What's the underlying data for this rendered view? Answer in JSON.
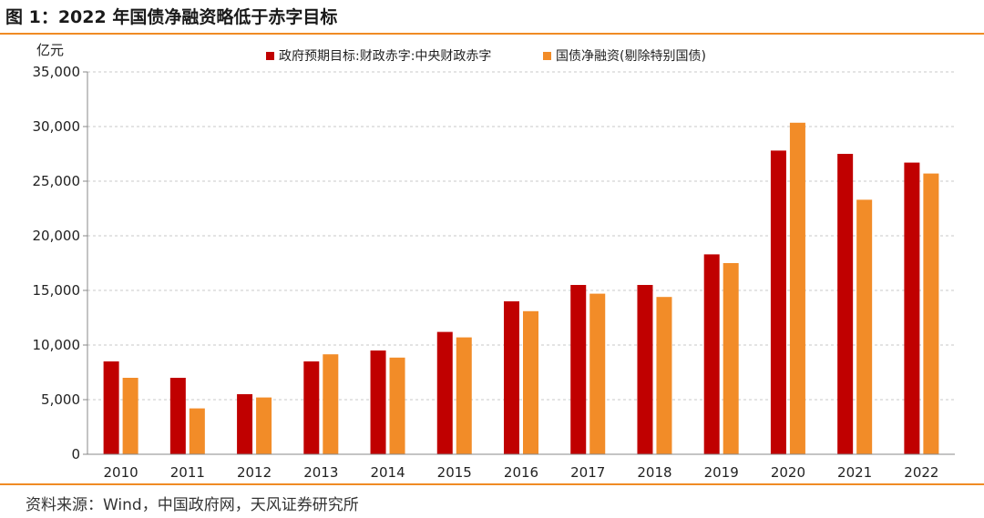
{
  "figure": {
    "title": "图 1：2022 年国债净融资略低于赤字目标",
    "source": "资料来源：Wind，中国政府网，天风证券研究所"
  },
  "colors": {
    "accent": "#f08b24",
    "series1": "#c00000",
    "series2": "#f28c28"
  },
  "chart_data": {
    "type": "bar",
    "title": "",
    "xlabel": "",
    "ylabel": "亿元",
    "ylim": [
      0,
      35000
    ],
    "yticks": [
      0,
      5000,
      10000,
      15000,
      20000,
      25000,
      30000,
      35000
    ],
    "ytick_labels": [
      "0",
      "5,000",
      "10,000",
      "15,000",
      "20,000",
      "25,000",
      "30,000",
      "35,000"
    ],
    "grid": true,
    "legend_position": "top",
    "categories": [
      "2010",
      "2011",
      "2012",
      "2013",
      "2014",
      "2015",
      "2016",
      "2017",
      "2018",
      "2019",
      "2020",
      "2021",
      "2022"
    ],
    "series": [
      {
        "name": "政府预期目标:财政赤字:中央财政赤字",
        "values": [
          8500,
          7000,
          5500,
          8500,
          9500,
          11200,
          14000,
          15500,
          15500,
          18300,
          27800,
          27500,
          26700
        ]
      },
      {
        "name": "国债净融资(剔除特别国债)",
        "values": [
          7000,
          4200,
          5200,
          9150,
          8850,
          10700,
          13100,
          14700,
          14400,
          17500,
          30350,
          23300,
          25700
        ]
      }
    ]
  }
}
